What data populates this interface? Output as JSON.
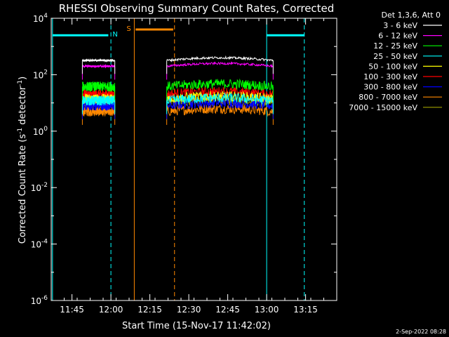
{
  "chart_data": {
    "type": "line",
    "title": "RHESSI Observing Summary Count Rates, Corrected",
    "xlabel": "Start Time (15-Nov-17 11:42:02)",
    "ylabel_main": "Corrected Count Rate (s",
    "ylabel_sup1": "-1",
    "ylabel_mid": " detector",
    "ylabel_sup2": "-1",
    "ylabel_end": ")",
    "yscale": "log",
    "ylim": [
      1e-06,
      10000
    ],
    "xlim_minutes": [
      -5,
      105
    ],
    "x_ticks": [
      {
        "label": "11:45",
        "min": 3
      },
      {
        "label": "12:00",
        "min": 18
      },
      {
        "label": "12:15",
        "min": 33
      },
      {
        "label": "12:30",
        "min": 48
      },
      {
        "label": "12:45",
        "min": 63
      },
      {
        "label": "13:00",
        "min": 78
      },
      {
        "label": "13:15",
        "min": 93
      }
    ],
    "y_ticks": [
      {
        "base": "10",
        "exp": "-6",
        "value": 1e-06
      },
      {
        "base": "10",
        "exp": "-4",
        "value": 0.0001
      },
      {
        "base": "10",
        "exp": "-2",
        "value": 0.01
      },
      {
        "base": "10",
        "exp": "0",
        "value": 1
      },
      {
        "base": "10",
        "exp": "2",
        "value": 100
      },
      {
        "base": "10",
        "exp": "4",
        "value": 10000
      }
    ],
    "legend_title": "Det 1,3,6, Att 0",
    "legend_position": "outside-right",
    "series": [
      {
        "name": "3 - 6 keV",
        "color": "#ffffff",
        "level": 320
      },
      {
        "name": "6 - 12 keV",
        "color": "#ff00ff",
        "level": 200
      },
      {
        "name": "12 - 25 keV",
        "color": "#00ff00",
        "level": 38
      },
      {
        "name": "25 - 50 keV",
        "color": "#00ffff",
        "level": 12
      },
      {
        "name": "50 - 100 keV",
        "color": "#ffff00",
        "level": 14
      },
      {
        "name": "100 - 300 keV",
        "color": "#ff0000",
        "level": 20
      },
      {
        "name": "300 - 800 keV",
        "color": "#0000ff",
        "level": 8
      },
      {
        "name": "800 - 7000 keV",
        "color": "#ff8800",
        "level": 5
      },
      {
        "name": "7000 - 15000 keV",
        "color": "#a0a000",
        "level": 10
      }
    ],
    "data_segments_minutes": [
      [
        7,
        19.5
      ],
      [
        39.5,
        80.5
      ]
    ],
    "events": [
      {
        "label": "N",
        "color": "#00ffff",
        "bar_minutes": [
          -4.5,
          17
        ],
        "bar_level": 2500,
        "start_minute": -4.5,
        "end_minute": 18,
        "second_bar_minutes": [
          78,
          92.5
        ],
        "second_start_minute": 78,
        "second_end_minute": 92.5
      },
      {
        "label": "S",
        "color": "#ff8800",
        "bar_minutes": [
          27.5,
          42
        ],
        "bar_level": 4000,
        "start_minute": 27,
        "end_minute": 42.5
      }
    ],
    "footer_date": "2-Sep-2022 08:28"
  }
}
